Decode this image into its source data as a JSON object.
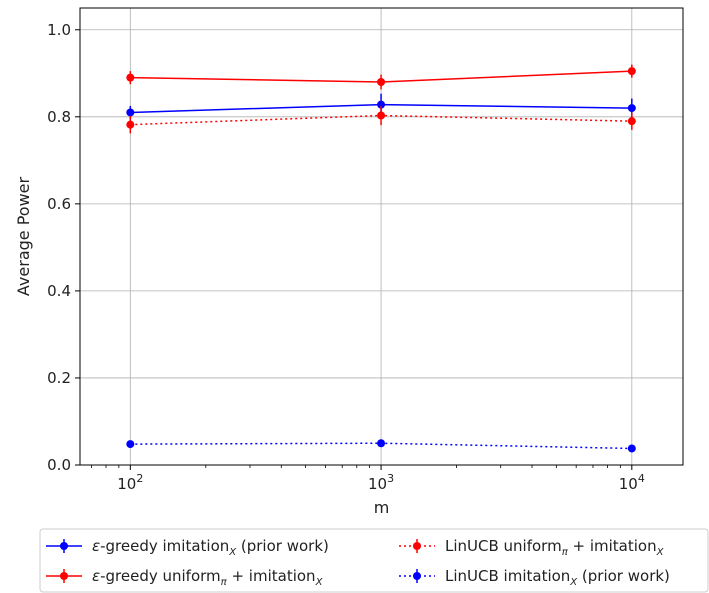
{
  "chart_data": {
    "type": "line",
    "xscale": "log",
    "x": [
      100,
      1000,
      10000
    ],
    "xlim": [
      63,
      16000
    ],
    "ylim": [
      0.0,
      1.05
    ],
    "xlabel": "m",
    "ylabel": "Average Power",
    "x_ticks": [
      100,
      1000,
      10000
    ],
    "x_tick_labels": [
      {
        "base": "10",
        "exp": "2"
      },
      {
        "base": "10",
        "exp": "3"
      },
      {
        "base": "10",
        "exp": "4"
      }
    ],
    "y_ticks": [
      0.0,
      0.2,
      0.4,
      0.6,
      0.8,
      1.0
    ],
    "y_tick_labels": [
      "0.0",
      "0.2",
      "0.4",
      "0.6",
      "0.8",
      "1.0"
    ],
    "grid": true,
    "legend_position": "bottom, outside plot, two columns",
    "series": [
      {
        "legend": {
          "pre": "",
          "sym": "ε",
          "mid": "-greedy imitation",
          "sub": "X",
          "post": " (prior work)"
        },
        "color": "#0000ff",
        "linestyle": "solid",
        "values": [
          0.81,
          0.828,
          0.82
        ],
        "errors": [
          0.015,
          0.025,
          0.022
        ]
      },
      {
        "legend": {
          "pre": "",
          "sym": "ε",
          "mid": "-greedy uniform",
          "sub": "π",
          "post": " + imitation",
          "sub2": "X"
        },
        "color": "#ff0000",
        "linestyle": "solid",
        "values": [
          0.89,
          0.88,
          0.905
        ],
        "errors": [
          0.015,
          0.017,
          0.015
        ]
      },
      {
        "legend": {
          "pre": "LinUCB uniform",
          "sym": "",
          "mid": "",
          "sub": "π",
          "post": " + imitation",
          "sub2": "X"
        },
        "color": "#ff0000",
        "linestyle": "dotted",
        "values": [
          0.782,
          0.803,
          0.79
        ],
        "errors": [
          0.02,
          0.022,
          0.02
        ]
      },
      {
        "legend": {
          "pre": "LinUCB imitation",
          "sym": "",
          "mid": "",
          "sub": "X",
          "post": " (prior work)"
        },
        "color": "#0000ff",
        "linestyle": "dotted",
        "values": [
          0.048,
          0.05,
          0.038
        ],
        "errors": [
          0.004,
          0.004,
          0.006
        ]
      }
    ]
  }
}
